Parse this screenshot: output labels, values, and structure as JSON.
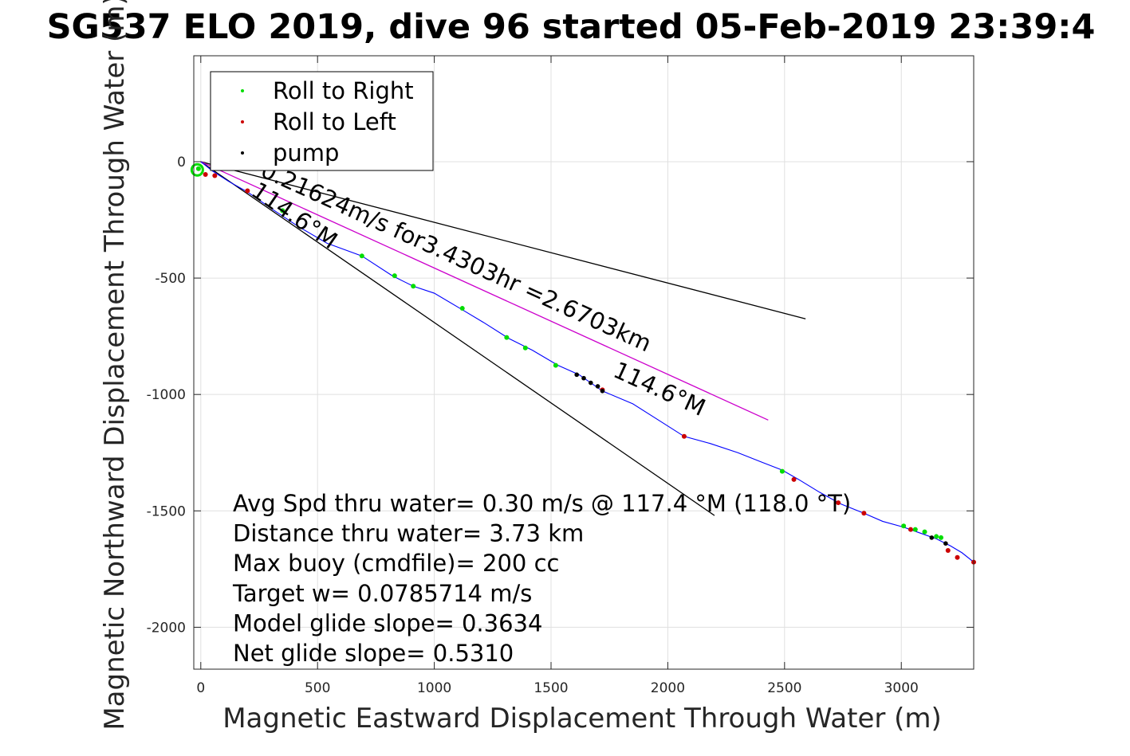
{
  "chart_data": {
    "type": "line",
    "title": "SG537 ELO 2019, dive 96 started 05-Feb-2019 23:39:4",
    "xlabel": "Magnetic Eastward Displacement Through Water (m)",
    "ylabel": "Magnetic Northward Displacement Through Water (m)",
    "xlim": [
      -30,
      3310
    ],
    "ylim": [
      -2180,
      455
    ],
    "xticks": [
      0,
      500,
      1000,
      1500,
      2000,
      2500,
      3000
    ],
    "xtick_labels": [
      "0",
      "500",
      "1000",
      "1500",
      "2000",
      "2500",
      "3000"
    ],
    "yticks": [
      0,
      -500,
      -1000,
      -1500,
      -2000
    ],
    "ytick_labels": [
      "0",
      "-500",
      "-1000",
      "-1500",
      "-2000"
    ],
    "grid": true,
    "legend_placement": "top-left",
    "legend": [
      {
        "label": "Roll to Right",
        "color": "#00dd00"
      },
      {
        "label": "Roll to Left",
        "color": "#cc0000"
      },
      {
        "label": "pump",
        "color": "#000000"
      }
    ],
    "track": {
      "color": "#0000ff",
      "x": [
        0,
        50,
        120,
        200,
        300,
        420,
        540,
        690,
        820,
        910,
        1000,
        1110,
        1210,
        1320,
        1420,
        1530,
        1620,
        1720,
        1850,
        1960,
        2070,
        2180,
        2300,
        2400,
        2490,
        2560,
        2650,
        2740,
        2840,
        2920,
        3010,
        3080,
        3150,
        3210,
        3260,
        3310
      ],
      "y": [
        0,
        -40,
        -85,
        -130,
        -200,
        -280,
        -350,
        -405,
        -490,
        -535,
        -565,
        -630,
        -690,
        -760,
        -810,
        -875,
        -915,
        -985,
        -1040,
        -1110,
        -1180,
        -1210,
        -1250,
        -1290,
        -1325,
        -1365,
        -1420,
        -1470,
        -1510,
        -1545,
        -1570,
        -1595,
        -1620,
        -1650,
        -1680,
        -1720
      ]
    },
    "roll_right": {
      "x": [
        -10,
        350,
        690,
        830,
        910,
        1120,
        1310,
        1390,
        1520,
        2490,
        3010,
        3060,
        3100,
        3150,
        3170
      ],
      "y": [
        -30,
        -210,
        -405,
        -490,
        -535,
        -630,
        -755,
        -800,
        -875,
        -1330,
        -1565,
        -1580,
        -1590,
        -1610,
        -1615
      ]
    },
    "roll_left": {
      "x": [
        20,
        60,
        200,
        1720,
        2070,
        2540,
        2730,
        2840,
        3040,
        3200,
        3240,
        3310
      ],
      "y": [
        -55,
        -60,
        -125,
        -980,
        -1180,
        -1365,
        -1465,
        -1510,
        -1580,
        -1670,
        -1700,
        -1720
      ]
    },
    "pump": {
      "x": [
        1610,
        1640,
        1670,
        1700,
        1720,
        3130,
        3190
      ],
      "y": [
        -915,
        -930,
        -950,
        -965,
        -985,
        -1615,
        -1640
      ]
    },
    "start_circle": {
      "x": -15,
      "y": -35
    },
    "lines": [
      {
        "name": "current",
        "color": "#000000",
        "x": [
          0,
          2590
        ],
        "y": [
          0,
          -675
        ]
      },
      {
        "name": "course-114",
        "color": "#000000",
        "x": [
          0,
          2200
        ],
        "y": [
          0,
          -1520
        ]
      },
      {
        "name": "net-displacement",
        "color": "#cc00cc",
        "x": [
          0,
          2430
        ],
        "y": [
          0,
          -1110
        ]
      }
    ],
    "annotations": [
      {
        "text": "0.21624m/s for3.4303hr =2.6703km",
        "x": 250,
        "y": -60
      },
      {
        "text": "114.6°M",
        "x": 210,
        "y": -140
      },
      {
        "text": "114.6°M",
        "x": 1760,
        "y": -920
      }
    ],
    "stats": [
      "Avg Spd thru water=  0.30 m/s @ 117.4 °M (118.0 °T)",
      "Distance thru water=  3.73 km",
      "Max buoy (cmdfile)= 200 cc",
      "Target w= 0.0785714 m/s",
      "Model glide slope= 0.3634",
      "Net glide slope= 0.5310"
    ]
  }
}
